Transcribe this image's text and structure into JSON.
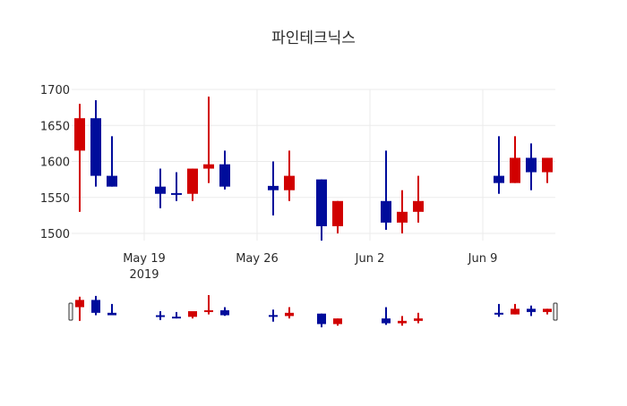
{
  "chart_data": {
    "type": "candlestick",
    "title": "파인테크닉스",
    "xlabel": "",
    "ylabel": "",
    "ylim": [
      1480,
      1700
    ],
    "grid": true,
    "colors": {
      "increasing": "#d10000",
      "decreasing": "#000c9b",
      "grid": "#ebebeb",
      "axis_text": "#2a2a2a"
    },
    "y_ticks": [
      1500,
      1550,
      1600,
      1650,
      1700
    ],
    "x_ticks": [
      {
        "date": "2019-05-19",
        "label": "May 19",
        "sublabel": "2019"
      },
      {
        "date": "2019-05-26",
        "label": "May 26",
        "sublabel": ""
      },
      {
        "date": "2019-06-02",
        "label": "Jun 2",
        "sublabel": ""
      },
      {
        "date": "2019-06-09",
        "label": "Jun 9",
        "sublabel": ""
      }
    ],
    "x_range": [
      "2019-05-14",
      "2019-06-14"
    ],
    "candles": [
      {
        "date": "2019-05-15",
        "open": 1615,
        "high": 1680,
        "low": 1530,
        "close": 1660
      },
      {
        "date": "2019-05-16",
        "open": 1660,
        "high": 1685,
        "low": 1565,
        "close": 1580
      },
      {
        "date": "2019-05-17",
        "open": 1580,
        "high": 1635,
        "low": 1565,
        "close": 1565
      },
      {
        "date": "2019-05-20",
        "open": 1565,
        "high": 1590,
        "low": 1535,
        "close": 1555
      },
      {
        "date": "2019-05-21",
        "open": 1556,
        "high": 1585,
        "low": 1545,
        "close": 1554
      },
      {
        "date": "2019-05-22",
        "open": 1555,
        "high": 1590,
        "low": 1545,
        "close": 1590
      },
      {
        "date": "2019-05-23",
        "open": 1590,
        "high": 1690,
        "low": 1570,
        "close": 1596
      },
      {
        "date": "2019-05-24",
        "open": 1596,
        "high": 1615,
        "low": 1561,
        "close": 1565
      },
      {
        "date": "2019-05-27",
        "open": 1566,
        "high": 1600,
        "low": 1525,
        "close": 1560
      },
      {
        "date": "2019-05-28",
        "open": 1560,
        "high": 1615,
        "low": 1545,
        "close": 1580
      },
      {
        "date": "2019-05-30",
        "open": 1575,
        "high": 1575,
        "low": 1490,
        "close": 1510
      },
      {
        "date": "2019-05-31",
        "open": 1510,
        "high": 1545,
        "low": 1500,
        "close": 1545
      },
      {
        "date": "2019-06-03",
        "open": 1545,
        "high": 1615,
        "low": 1505,
        "close": 1515
      },
      {
        "date": "2019-06-04",
        "open": 1515,
        "high": 1560,
        "low": 1500,
        "close": 1530
      },
      {
        "date": "2019-06-05",
        "open": 1530,
        "high": 1580,
        "low": 1515,
        "close": 1545
      },
      {
        "date": "2019-06-10",
        "open": 1580,
        "high": 1635,
        "low": 1555,
        "close": 1570
      },
      {
        "date": "2019-06-11",
        "open": 1570,
        "high": 1635,
        "low": 1570,
        "close": 1605
      },
      {
        "date": "2019-06-12",
        "open": 1605,
        "high": 1625,
        "low": 1560,
        "close": 1585
      },
      {
        "date": "2019-06-13",
        "open": 1585,
        "high": 1605,
        "low": 1570,
        "close": 1605
      }
    ],
    "rangeslider": {
      "visible": true
    }
  }
}
